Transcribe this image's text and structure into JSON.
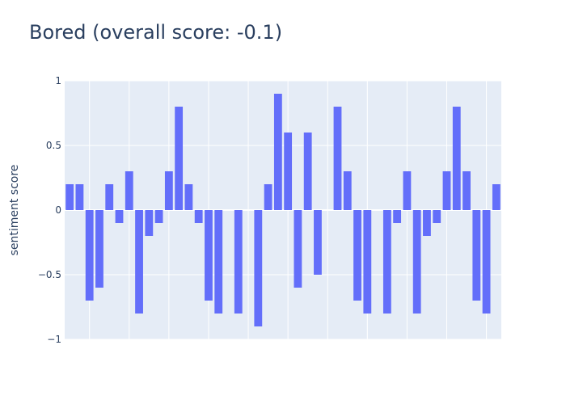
{
  "chart_data": {
    "type": "bar",
    "title": "Bored (overall score: -0.1)",
    "xlabel": "",
    "ylabel": "sentiment score",
    "ylim": [
      -1,
      1
    ],
    "yticks": [
      1,
      0.5,
      0,
      -0.5,
      -1
    ],
    "ytick_labels": [
      "1",
      "0.5",
      "0",
      "−0.5",
      "−1"
    ],
    "grid": true,
    "bar_color": "#636efa",
    "plot_background": "#e5ecf6",
    "gridline_color": "#ffffff",
    "values": [
      0.2,
      0.2,
      -0.7,
      -0.6,
      0.2,
      -0.1,
      0.3,
      -0.8,
      -0.2,
      -0.1,
      0.3,
      0.8,
      0.2,
      -0.1,
      -0.7,
      -0.8,
      0,
      -0.8,
      0,
      -0.9,
      0.2,
      0.9,
      0.6,
      -0.6,
      0.6,
      -0.5,
      0,
      0.8,
      0.3,
      -0.7,
      -0.8,
      0,
      -0.8,
      -0.1,
      0.3,
      -0.8,
      -0.2,
      -0.1,
      0.3,
      0.8,
      0.3,
      -0.7,
      -0.8,
      0.2
    ]
  }
}
